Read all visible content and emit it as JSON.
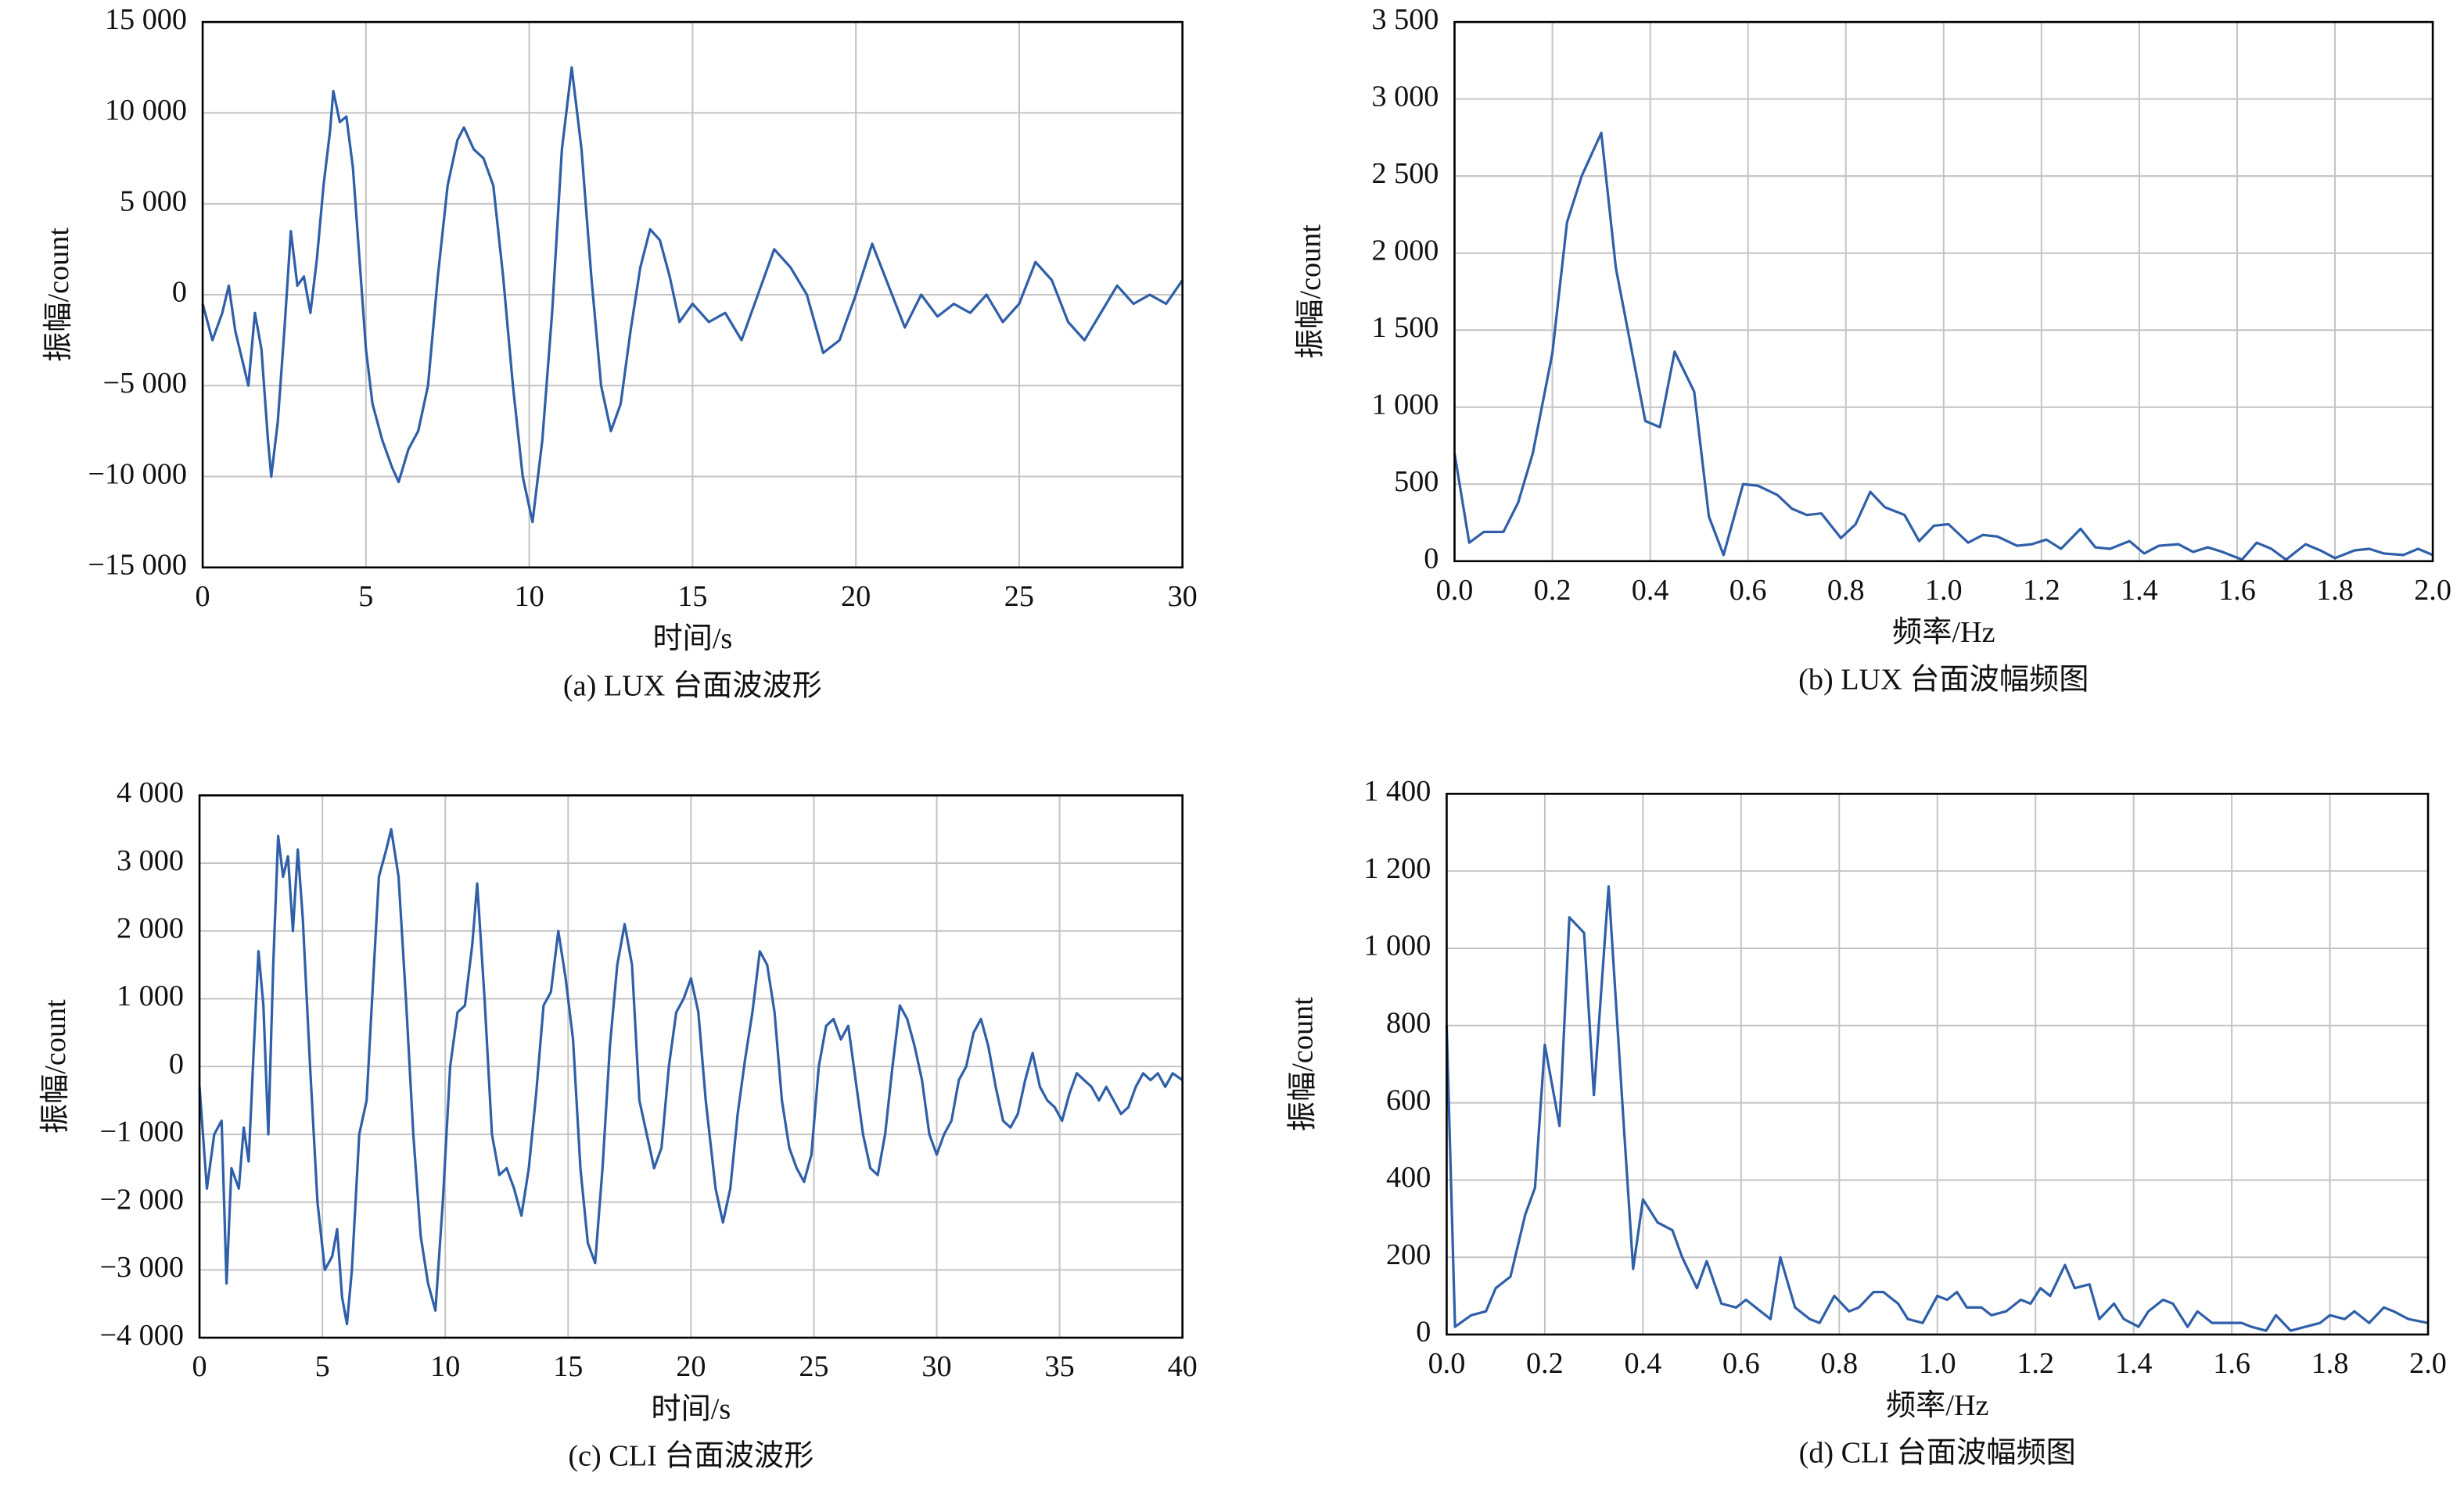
{
  "chart_data": [
    {
      "type": "line",
      "title": "(a) LUX 台面波波形",
      "xlabel": "时间/s",
      "ylabel": "振幅/count",
      "color": "#2f5fa8",
      "grid": true,
      "xlim": [
        0,
        30
      ],
      "ylim": [
        -15000,
        15000
      ],
      "xticks": [
        0,
        5,
        10,
        15,
        20,
        25,
        30
      ],
      "yticks": [
        {
          "value": -15000,
          "label": "−15 000"
        },
        {
          "value": -10000,
          "label": "−10 000"
        },
        {
          "value": -5000,
          "label": "−5 000"
        },
        0,
        {
          "value": 5000,
          "label": "5 000"
        },
        {
          "value": 10000,
          "label": "10 000"
        },
        {
          "value": 15000,
          "label": "15 000"
        }
      ],
      "x": [
        0,
        0.3,
        0.6,
        0.8,
        1.0,
        1.2,
        1.4,
        1.6,
        1.8,
        2.0,
        2.1,
        2.3,
        2.5,
        2.7,
        2.9,
        3.1,
        3.3,
        3.5,
        3.7,
        3.9,
        4.0,
        4.2,
        4.4,
        4.6,
        4.8,
        5.0,
        5.2,
        5.5,
        5.8,
        6.0,
        6.3,
        6.6,
        6.9,
        7.2,
        7.5,
        7.8,
        8.0,
        8.3,
        8.6,
        8.9,
        9.2,
        9.5,
        9.8,
        10.1,
        10.4,
        10.7,
        11.0,
        11.3,
        11.6,
        11.9,
        12.2,
        12.5,
        12.8,
        13.1,
        13.4,
        13.7,
        14.0,
        14.3,
        14.6,
        15.0,
        15.5,
        16.0,
        16.5,
        17.0,
        17.5,
        18.0,
        18.5,
        19.0,
        19.5,
        20.0,
        20.5,
        21.0,
        21.5,
        22.0,
        22.5,
        23.0,
        23.5,
        24.0,
        24.5,
        25.0,
        25.5,
        26.0,
        26.5,
        27.0,
        27.5,
        28.0,
        28.5,
        29.0,
        29.5,
        30.0
      ],
      "values": [
        -500,
        -2500,
        -1000,
        500,
        -2000,
        -3500,
        -5000,
        -1000,
        -3000,
        -8000,
        -10000,
        -7000,
        -2000,
        3500,
        500,
        1000,
        -1000,
        2000,
        6000,
        9000,
        11200,
        9500,
        9800,
        7000,
        2000,
        -3000,
        -6000,
        -8000,
        -9500,
        -10300,
        -8500,
        -7500,
        -5000,
        1000,
        6000,
        8500,
        9200,
        8000,
        7500,
        6000,
        1000,
        -5000,
        -10000,
        -12500,
        -8000,
        -1000,
        8000,
        12500,
        8000,
        1000,
        -5000,
        -7500,
        -6000,
        -2000,
        1500,
        3600,
        3000,
        1000,
        -1500,
        -500,
        -1500,
        -1000,
        -2500,
        0,
        2500,
        1500,
        0,
        -3200,
        -2500,
        0,
        2800,
        500,
        -1800,
        0,
        -1200,
        -500,
        -1000,
        0,
        -1500,
        -500,
        1800,
        800,
        -1500,
        -2500,
        -1000,
        500,
        -500,
        0,
        -500,
        800
      ]
    },
    {
      "type": "line",
      "title": "(b) LUX 台面波幅频图",
      "xlabel": "频率/Hz",
      "ylabel": "振幅/count",
      "color": "#2f5fa8",
      "grid": true,
      "xlim": [
        0,
        2
      ],
      "ylim": [
        0,
        3500
      ],
      "xticks": [
        {
          "value": 0,
          "label": "0.0"
        },
        0.2,
        0.4,
        0.6,
        0.8,
        {
          "value": 1,
          "label": "1.0"
        },
        1.2,
        1.4,
        1.6,
        1.8,
        {
          "value": 2,
          "label": "2.0"
        }
      ],
      "yticks": [
        0,
        500,
        {
          "value": 1000,
          "label": "1 000"
        },
        {
          "value": 1500,
          "label": "1 500"
        },
        {
          "value": 2000,
          "label": "2 000"
        },
        {
          "value": 2500,
          "label": "2 500"
        },
        {
          "value": 3000,
          "label": "3 000"
        },
        {
          "value": 3500,
          "label": "3 500"
        }
      ],
      "x": [
        0,
        0.03,
        0.06,
        0.1,
        0.13,
        0.16,
        0.2,
        0.23,
        0.26,
        0.3,
        0.33,
        0.39,
        0.42,
        0.45,
        0.49,
        0.52,
        0.55,
        0.59,
        0.62,
        0.66,
        0.69,
        0.72,
        0.75,
        0.79,
        0.82,
        0.85,
        0.88,
        0.92,
        0.95,
        0.98,
        1.01,
        1.05,
        1.08,
        1.11,
        1.15,
        1.18,
        1.21,
        1.24,
        1.28,
        1.31,
        1.34,
        1.38,
        1.41,
        1.44,
        1.48,
        1.51,
        1.54,
        1.57,
        1.61,
        1.64,
        1.67,
        1.7,
        1.74,
        1.77,
        1.8,
        1.84,
        1.87,
        1.9,
        1.94,
        1.97,
        2.0
      ],
      "values": [
        700,
        120,
        190,
        190,
        380,
        700,
        1350,
        2200,
        2500,
        2780,
        1900,
        910,
        870,
        1360,
        1100,
        290,
        40,
        500,
        490,
        430,
        340,
        300,
        310,
        150,
        240,
        450,
        350,
        300,
        130,
        230,
        240,
        120,
        170,
        160,
        100,
        110,
        140,
        80,
        210,
        90,
        80,
        130,
        50,
        100,
        110,
        60,
        90,
        60,
        10,
        120,
        80,
        10,
        110,
        70,
        20,
        70,
        80,
        50,
        40,
        80,
        40
      ]
    },
    {
      "type": "line",
      "title": "(c) CLI 台面波波形",
      "xlabel": "时间/s",
      "ylabel": "振幅/count",
      "color": "#2f5fa8",
      "grid": true,
      "xlim": [
        0,
        40
      ],
      "ylim": [
        -4000,
        4000
      ],
      "xticks": [
        0,
        5,
        10,
        15,
        20,
        25,
        30,
        35,
        40
      ],
      "yticks": [
        {
          "value": -4000,
          "label": "−4 000"
        },
        {
          "value": -3000,
          "label": "−3 000"
        },
        {
          "value": -2000,
          "label": "−2 000"
        },
        {
          "value": -1000,
          "label": "−1 000"
        },
        0,
        {
          "value": 1000,
          "label": "1 000"
        },
        {
          "value": 2000,
          "label": "2 000"
        },
        {
          "value": 3000,
          "label": "3 000"
        },
        {
          "value": 4000,
          "label": "4 000"
        }
      ],
      "x": [
        0,
        0.3,
        0.6,
        0.9,
        1.1,
        1.3,
        1.6,
        1.8,
        2.0,
        2.2,
        2.4,
        2.6,
        2.8,
        3.0,
        3.2,
        3.4,
        3.6,
        3.8,
        4.0,
        4.2,
        4.5,
        4.8,
        5.1,
        5.4,
        5.6,
        5.8,
        6.0,
        6.2,
        6.5,
        6.8,
        7.1,
        7.3,
        7.6,
        7.8,
        8.1,
        8.4,
        8.7,
        9.0,
        9.3,
        9.6,
        9.9,
        10.2,
        10.5,
        10.8,
        11.1,
        11.3,
        11.6,
        11.9,
        12.2,
        12.5,
        12.8,
        13.1,
        13.4,
        13.7,
        14.0,
        14.3,
        14.6,
        14.9,
        15.2,
        15.5,
        15.8,
        16.1,
        16.4,
        16.7,
        17.0,
        17.3,
        17.6,
        17.9,
        18.2,
        18.5,
        18.8,
        19.1,
        19.4,
        19.7,
        20.0,
        20.3,
        20.6,
        21.0,
        21.3,
        21.6,
        21.9,
        22.2,
        22.5,
        22.8,
        23.1,
        23.4,
        23.7,
        24.0,
        24.3,
        24.6,
        24.9,
        25.2,
        25.5,
        25.8,
        26.1,
        26.4,
        26.7,
        27.0,
        27.3,
        27.6,
        27.9,
        28.2,
        28.5,
        28.8,
        29.1,
        29.4,
        29.7,
        30.0,
        30.3,
        30.6,
        30.9,
        31.2,
        31.5,
        31.8,
        32.1,
        32.4,
        32.7,
        33.0,
        33.3,
        33.6,
        33.9,
        34.2,
        34.5,
        34.8,
        35.1,
        35.4,
        35.7,
        36.0,
        36.3,
        36.6,
        36.9,
        37.2,
        37.5,
        37.8,
        38.1,
        38.4,
        38.7,
        39.0,
        39.3,
        39.6,
        40.0
      ],
      "values": [
        -300,
        -1800,
        -1000,
        -800,
        -3200,
        -1500,
        -1800,
        -900,
        -1400,
        200,
        1700,
        900,
        -1000,
        1500,
        3400,
        2800,
        3100,
        2000,
        3200,
        2200,
        0,
        -2000,
        -3000,
        -2800,
        -2400,
        -3400,
        -3800,
        -3000,
        -1000,
        -500,
        1500,
        2800,
        3200,
        3500,
        2800,
        1000,
        -1000,
        -2500,
        -3200,
        -3600,
        -2000,
        0,
        800,
        900,
        1800,
        2700,
        1000,
        -1000,
        -1600,
        -1500,
        -1800,
        -2200,
        -1500,
        -400,
        900,
        1100,
        2000,
        1300,
        400,
        -1500,
        -2600,
        -2900,
        -1500,
        300,
        1500,
        2100,
        1500,
        -500,
        -1000,
        -1500,
        -1200,
        0,
        800,
        1000,
        1300,
        800,
        -500,
        -1800,
        -2300,
        -1800,
        -700,
        100,
        800,
        1700,
        1500,
        800,
        -500,
        -1200,
        -1500,
        -1700,
        -1300,
        0,
        600,
        700,
        400,
        600,
        -200,
        -1000,
        -1500,
        -1600,
        -1000,
        0,
        900,
        700,
        300,
        -200,
        -1000,
        -1300,
        -1000,
        -800,
        -200,
        0,
        500,
        700,
        300,
        -300,
        -800,
        -900,
        -700,
        -200,
        200,
        -300,
        -500,
        -600,
        -800,
        -400,
        -100,
        -200,
        -300,
        -500,
        -300,
        -500,
        -700,
        -600,
        -300,
        -100,
        -200,
        -100,
        -300,
        -100,
        -200
      ]
    },
    {
      "type": "line",
      "title": "(d) CLI 台面波幅频图",
      "xlabel": "频率/Hz",
      "ylabel": "振幅/count",
      "color": "#2f5fa8",
      "grid": true,
      "xlim": [
        0,
        2
      ],
      "ylim": [
        0,
        1400
      ],
      "xticks": [
        {
          "value": 0,
          "label": "0.0"
        },
        0.2,
        0.4,
        0.6,
        0.8,
        {
          "value": 1,
          "label": "1.0"
        },
        1.2,
        1.4,
        1.6,
        1.8,
        {
          "value": 2,
          "label": "2.0"
        }
      ],
      "yticks": [
        0,
        200,
        400,
        600,
        800,
        {
          "value": 1000,
          "label": "1 000"
        },
        {
          "value": 1200,
          "label": "1 200"
        },
        {
          "value": 1400,
          "label": "1 400"
        }
      ],
      "x": [
        0,
        0.017,
        0.05,
        0.08,
        0.1,
        0.13,
        0.16,
        0.18,
        0.2,
        0.23,
        0.25,
        0.28,
        0.3,
        0.33,
        0.36,
        0.38,
        0.4,
        0.43,
        0.46,
        0.48,
        0.51,
        0.53,
        0.56,
        0.59,
        0.61,
        0.64,
        0.66,
        0.68,
        0.71,
        0.74,
        0.76,
        0.79,
        0.82,
        0.84,
        0.87,
        0.89,
        0.92,
        0.94,
        0.97,
        1.0,
        1.02,
        1.04,
        1.06,
        1.09,
        1.11,
        1.14,
        1.17,
        1.19,
        1.21,
        1.23,
        1.26,
        1.28,
        1.31,
        1.33,
        1.36,
        1.38,
        1.41,
        1.43,
        1.46,
        1.48,
        1.51,
        1.53,
        1.56,
        1.59,
        1.62,
        1.64,
        1.67,
        1.69,
        1.72,
        1.75,
        1.78,
        1.8,
        1.83,
        1.85,
        1.88,
        1.91,
        1.93,
        1.96,
        2.0
      ],
      "values": [
        800,
        20,
        50,
        60,
        120,
        150,
        310,
        380,
        750,
        540,
        1080,
        1040,
        620,
        1160,
        560,
        170,
        350,
        290,
        270,
        200,
        120,
        190,
        80,
        70,
        90,
        60,
        40,
        200,
        70,
        40,
        30,
        100,
        60,
        70,
        110,
        110,
        80,
        40,
        30,
        100,
        90,
        110,
        70,
        70,
        50,
        60,
        90,
        80,
        120,
        100,
        180,
        120,
        130,
        40,
        80,
        40,
        20,
        60,
        90,
        80,
        20,
        60,
        30,
        30,
        30,
        20,
        10,
        50,
        10,
        20,
        30,
        50,
        40,
        60,
        30,
        70,
        60,
        40,
        30
      ]
    }
  ]
}
